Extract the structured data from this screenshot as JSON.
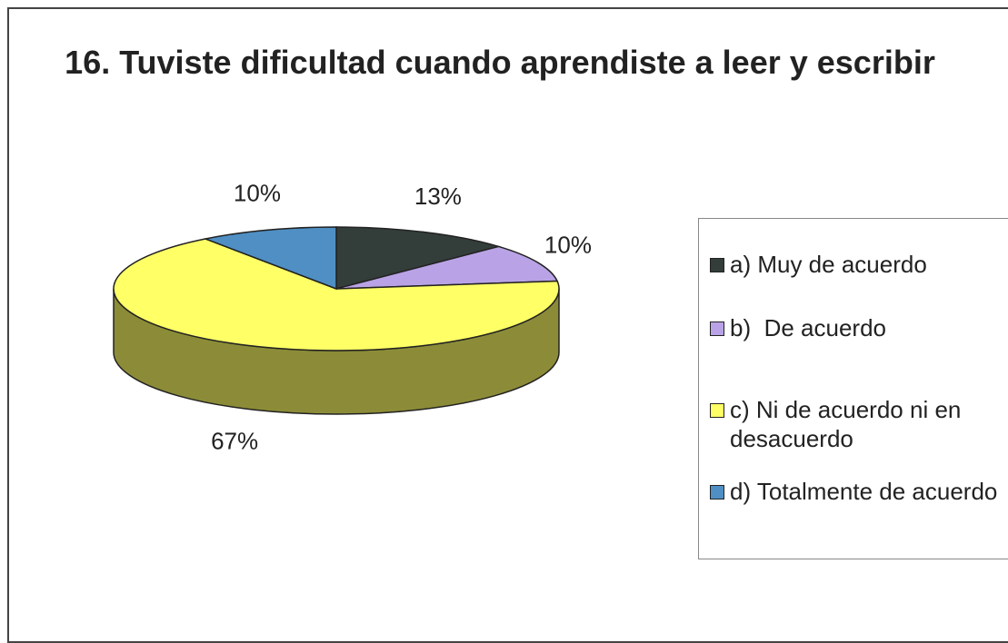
{
  "chart_data": {
    "type": "pie",
    "title": "16. Tuviste dificultad cuando aprendiste a leer y escribir",
    "categories": [
      "a) Muy de acuerdo",
      "b)  De acuerdo",
      "c) Ni de acuerdo ni en desacuerdo",
      "d) Totalmente de acuerdo"
    ],
    "values": [
      13,
      10,
      67,
      10
    ],
    "value_labels": [
      "13%",
      "10%",
      "67%",
      "10%"
    ],
    "colors": [
      "#333d3a",
      "#b9a3e6",
      "#ffff66",
      "#4f8fc4"
    ],
    "legend": "right"
  }
}
